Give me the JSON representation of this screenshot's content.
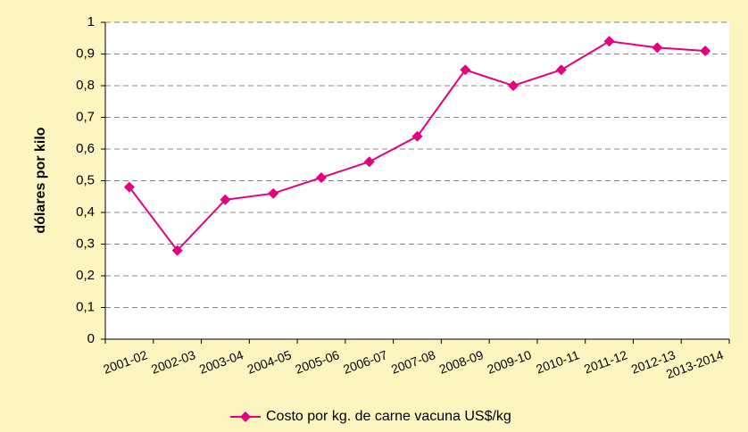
{
  "chart_data": {
    "type": "line",
    "ylabel": "dólares por kilo",
    "categories": [
      "2001-02",
      "2002-03",
      "2003-04",
      "2004-05",
      "2005-06",
      "2006-07",
      "2007-08",
      "2008-09",
      "2009-10",
      "2010-11",
      "2011-12",
      "2012-13",
      "2013-2014"
    ],
    "series": [
      {
        "name": "Costo por kg. de carne vacuna US$/kg",
        "color": "#e6007e",
        "values": [
          0.48,
          0.28,
          0.44,
          0.46,
          0.51,
          0.56,
          0.64,
          0.85,
          0.8,
          0.85,
          0.94,
          0.92,
          0.91
        ]
      }
    ],
    "ylim": [
      0,
      1
    ],
    "yticks": [
      0,
      {
        "value": 0.1,
        "label": "0,1"
      },
      {
        "value": 0.2,
        "label": "0,2"
      },
      {
        "value": 0.3,
        "label": "0,3"
      },
      {
        "value": 0.4,
        "label": "0,4"
      },
      {
        "value": 0.5,
        "label": "0,5"
      },
      {
        "value": 0.6,
        "label": "0,6"
      },
      {
        "value": 0.7,
        "label": "0,7"
      },
      {
        "value": 0.8,
        "label": "0,8"
      },
      {
        "value": 0.9,
        "label": "0,9"
      },
      1
    ],
    "grid": true,
    "legend": "bottom"
  }
}
